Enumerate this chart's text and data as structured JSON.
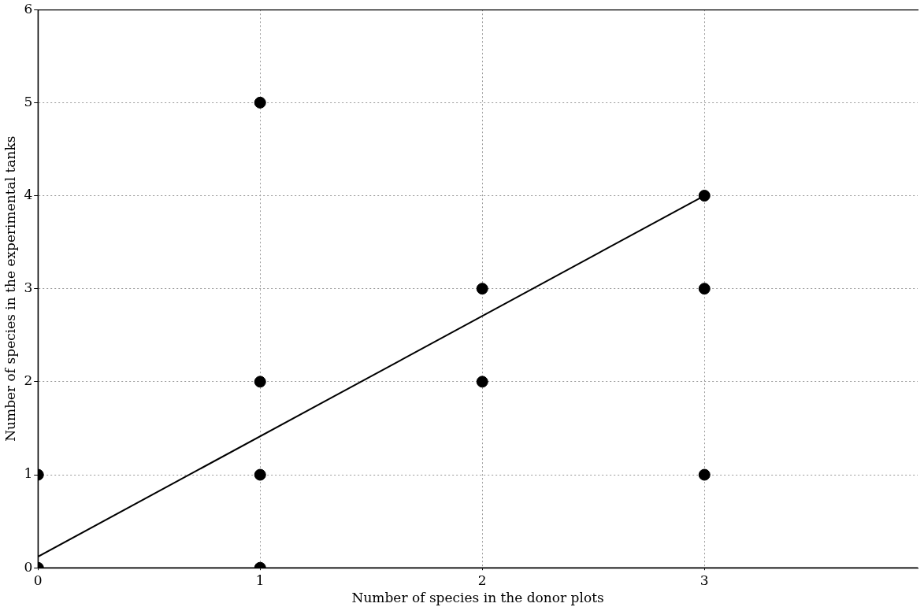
{
  "chart_data": {
    "type": "scatter",
    "xlabel": "Number of species in the donor plots",
    "ylabel": "Number of species in the experimental tanks",
    "xlim": [
      0,
      3.96
    ],
    "xticks": [
      0,
      1,
      2,
      3
    ],
    "ylim": [
      0,
      6
    ],
    "yticks": [
      0,
      1,
      2,
      3,
      4,
      5,
      6
    ],
    "grid": true,
    "legend": false,
    "series": [
      {
        "type": "scatter",
        "color": "#000000",
        "marker": "circle",
        "x": [
          0,
          0,
          1,
          1,
          1,
          1,
          2,
          2,
          3,
          3,
          3
        ],
        "values": [
          0,
          1,
          5,
          2,
          1,
          0,
          3,
          2,
          4,
          3,
          1
        ]
      },
      {
        "type": "line",
        "color": "#000000",
        "marker": "none",
        "line_style": "solid",
        "x": [
          0,
          3
        ],
        "values": [
          0.12,
          4
        ]
      }
    ]
  }
}
